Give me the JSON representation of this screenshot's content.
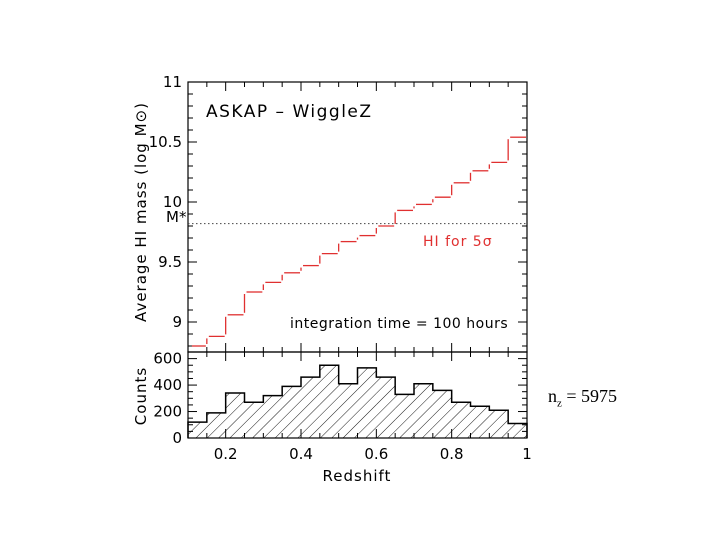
{
  "chart_data": [
    {
      "type": "line",
      "style": "step",
      "title": "ASKAP – WiggleZ",
      "ylabel": "Average HI mass  (log M⊙)",
      "xlabel": "",
      "xlim": [
        0.1,
        1.0
      ],
      "ylim": [
        8.75,
        11.0
      ],
      "yticks": [
        "9",
        "9.5",
        "10",
        "10.5",
        "11"
      ],
      "series": [
        {
          "name": "HI for 5σ",
          "color": "#e03030",
          "x_edges": [
            0.15,
            0.2,
            0.25,
            0.3,
            0.35,
            0.4,
            0.45,
            0.5,
            0.55,
            0.6,
            0.65,
            0.7,
            0.75,
            0.8,
            0.85,
            0.9,
            0.95,
            1.0
          ],
          "values": [
            8.8,
            8.88,
            9.06,
            9.25,
            9.33,
            9.41,
            9.47,
            9.57,
            9.67,
            9.72,
            9.8,
            9.93,
            9.98,
            10.04,
            10.16,
            10.26,
            10.33,
            10.54
          ]
        }
      ],
      "reference_line": {
        "label": "M*",
        "value": 9.82
      },
      "annotations": [
        "HI for 5σ",
        "integration time = 100 hours"
      ]
    },
    {
      "type": "bar",
      "style": "histogram",
      "xlabel": "Redshift",
      "ylabel": "Counts",
      "xlim": [
        0.1,
        1.0
      ],
      "ylim": [
        0,
        650
      ],
      "xticks": [
        "0.2",
        "0.4",
        "0.6",
        "0.8",
        "1"
      ],
      "yticks": [
        "0",
        "200",
        "400",
        "600"
      ],
      "bin_edges": [
        0.1,
        0.15,
        0.2,
        0.25,
        0.3,
        0.35,
        0.4,
        0.45,
        0.5,
        0.55,
        0.6,
        0.65,
        0.7,
        0.75,
        0.8,
        0.85,
        0.9,
        0.95,
        1.0
      ],
      "values": [
        120,
        190,
        340,
        270,
        320,
        390,
        460,
        550,
        410,
        530,
        460,
        330,
        410,
        360,
        270,
        240,
        210,
        110
      ]
    }
  ],
  "side_note": {
    "prefix": "n",
    "subscript": "z",
    "suffix": " = 5975"
  }
}
